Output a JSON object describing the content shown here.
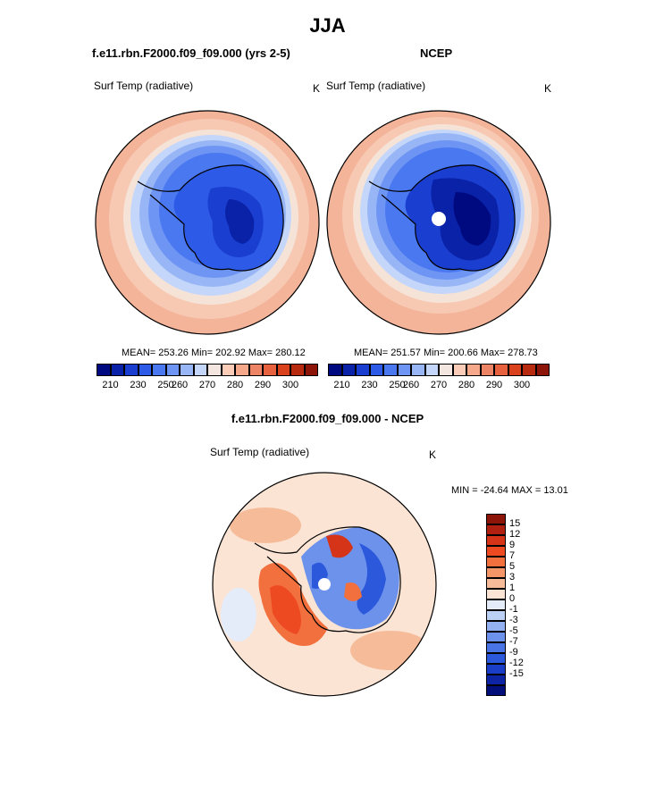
{
  "figure": {
    "season": "JJA",
    "left_title": "f.e11.rbn.F2000.f09_f09.000 (yrs 2-5)",
    "right_title": "NCEP",
    "diff_title": "f.e11.rbn.F2000.f09_f09.000 - NCEP"
  },
  "panels": {
    "model": {
      "variable": "Surf Temp (radiative)",
      "units": "K",
      "stats": "MEAN= 253.26  Min= 202.92  Max= 280.12"
    },
    "obs": {
      "variable": "Surf Temp (radiative)",
      "units": "K",
      "stats": "MEAN= 251.57  Min= 200.66  Max= 278.73"
    },
    "diff": {
      "variable": "Surf Temp (radiative)",
      "units": "K",
      "stats": "MIN = -24.64 MAX =  13.01"
    }
  },
  "colorbar_abs": {
    "colors": [
      "#000a80",
      "#0a22a8",
      "#1a3fd0",
      "#2d5ae6",
      "#4a78f0",
      "#6e95f3",
      "#98b6f6",
      "#c4d6f9",
      "#f3e6e0",
      "#fbcdb8",
      "#f5a98a",
      "#ee8466",
      "#e8613f",
      "#d9421c",
      "#b82a10",
      "#8c1409"
    ],
    "labels": [
      "210",
      "230",
      "250",
      "260",
      "270",
      "280",
      "290",
      "300"
    ]
  },
  "colorbar_diff": {
    "colors": [
      "#8c1409",
      "#b02010",
      "#d63418",
      "#ee4a22",
      "#f2703e",
      "#f49668",
      "#f6bc9a",
      "#fbe4d4",
      "#e4ecfa",
      "#bcd0f6",
      "#94b2f2",
      "#6c92ec",
      "#4874e6",
      "#2c58dc",
      "#1a3ec8",
      "#0d24a4",
      "#020f7a"
    ],
    "labels": [
      "15",
      "12",
      "9",
      "7",
      "5",
      "3",
      "1",
      "0",
      "-1",
      "-3",
      "-5",
      "-7",
      "-9",
      "-12",
      "-15"
    ]
  }
}
